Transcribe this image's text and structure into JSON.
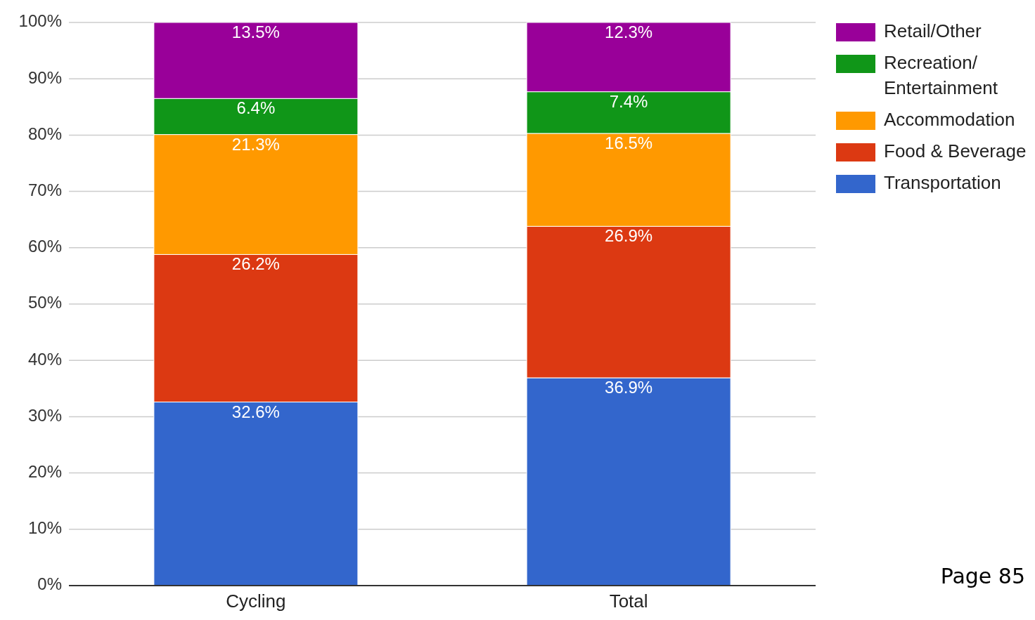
{
  "chart_data": {
    "type": "bar",
    "stacked": true,
    "categories": [
      "Cycling",
      "Total"
    ],
    "series": [
      {
        "name": "Transportation",
        "color": "#3366cc",
        "values": [
          32.6,
          36.9
        ],
        "value_labels": [
          "32.6%",
          "36.9%"
        ]
      },
      {
        "name": "Food & Beverage",
        "color": "#dc3912",
        "values": [
          26.2,
          26.9
        ],
        "value_labels": [
          "26.2%",
          "26.9%"
        ]
      },
      {
        "name": "Accommodation",
        "color": "#ff9900",
        "values": [
          21.3,
          16.5
        ],
        "value_labels": [
          "21.3%",
          "16.5%"
        ]
      },
      {
        "name": "Recreation/ Entertainment",
        "color": "#109618",
        "values": [
          6.4,
          7.4
        ],
        "value_labels": [
          "6.4%",
          "7.4%"
        ]
      },
      {
        "name": "Retail/Other",
        "color": "#990099",
        "values": [
          13.5,
          12.3
        ],
        "value_labels": [
          "13.5%",
          "12.3%"
        ]
      }
    ],
    "ylim": [
      0,
      100
    ],
    "yticks": [
      {
        "value": 0,
        "label": "0%"
      },
      {
        "value": 10,
        "label": "10%"
      },
      {
        "value": 20,
        "label": "20%"
      },
      {
        "value": 30,
        "label": "30%"
      },
      {
        "value": 40,
        "label": "40%"
      },
      {
        "value": 50,
        "label": "50%"
      },
      {
        "value": 60,
        "label": "60%"
      },
      {
        "value": 70,
        "label": "70%"
      },
      {
        "value": 80,
        "label": "80%"
      },
      {
        "value": 90,
        "label": "90%"
      },
      {
        "value": 100,
        "label": "100%"
      }
    ],
    "grid": "y",
    "legend": "top right",
    "annotations": [
      "Page 85"
    ]
  }
}
